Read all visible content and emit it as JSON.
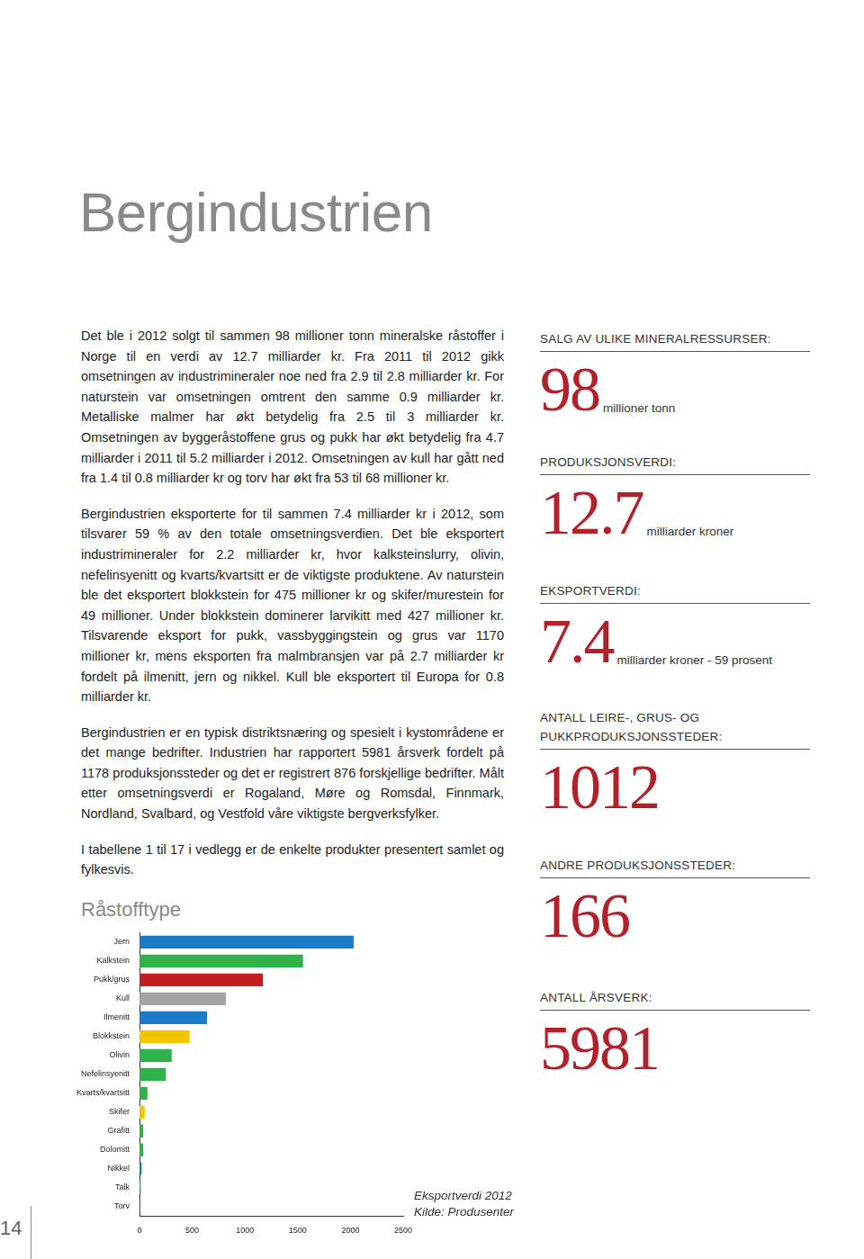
{
  "header": {
    "title": "Bergindustrien"
  },
  "paragraphs": [
    "Det ble i 2012 solgt til sammen 98 millioner tonn mineralske råstoffer i Norge til en verdi av 12.7 milliarder kr. Fra 2011 til 2012 gikk omsetningen av industrimineraler noe ned fra 2.9 til 2.8 milliarder kr. For naturstein var omsetningen omtrent den samme 0.9 milliarder kr. Metalliske malmer har økt betydelig fra 2.5 til 3 milliarder kr. Omsetningen av byggeråstoffene grus og pukk har økt betydelig fra 4.7 milliarder i 2011 til 5.2 milliarder i 2012. Omsetningen av kull har gått ned fra 1.4 til 0.8 milliarder kr og torv har økt fra 53 til 68 millioner kr.",
    "Bergindustrien eksporterte for til sammen 7.4 milliarder kr i 2012, som tilsvarer 59 % av den totale omsetningsverdien. Det ble eksportert industrimineraler for 2.2 milliarder kr, hvor kalksteinslurry, olivin, nefelinsyenitt og kvarts/kvartsitt er de viktigste produktene. Av naturstein ble det eksportert blokkstein for 475 millioner kr og skifer/murestein for 49 millioner. Under blokkstein dominerer larvikitt med 427 millioner kr. Tilsvarende eksport for pukk, vassbyggingstein og grus var 1170 millioner kr, mens eksporten fra malmbransjen var på 2.7 milliarder kr fordelt på ilmenitt, jern og nikkel. Kull ble eksportert til Europa for 0.8 milliarder kr.",
    "Bergindustrien er en typisk distriktsnæring og spesielt i kystområdene er det mange bedrifter. Industrien har rapportert 5981 årsverk fordelt på 1178 produksjonssteder og det er registrert 876 forskjellige bedrifter. Målt etter omsetningsverdi er Rogaland, Møre og Romsdal, Finnmark, Nordland, Svalbard, og Vestfold våre viktigste bergverksfylker.",
    "I tabellene 1 til 17 i vedlegg er de enkelte produkter presentert samlet og fylkesvis."
  ],
  "sidebar": [
    {
      "heading": "SALG AV ULIKE MINERALRESSURSER:",
      "number": "98",
      "unit": "millioner tonn"
    },
    {
      "heading": "PRODUKSJONSVERDI:",
      "number": "12.7",
      "unit": "milliarder kroner"
    },
    {
      "heading": "EKSPORTVERDI:",
      "number": "7.4",
      "unit": "milliarder kroner - 59 prosent"
    },
    {
      "heading": "ANTALL LEIRE-, GRUS- OG PUKKPRODUKSJONSSTEDER:",
      "number": "1012"
    },
    {
      "heading": "ANDRE PRODUKSJONSSTEDER:",
      "number": "166"
    },
    {
      "heading": "ANTALL ÅRSVERK:",
      "number": "5981"
    }
  ],
  "page_number": "14",
  "chart_data": {
    "type": "bar",
    "title": "Råstofftype",
    "orientation": "horizontal",
    "categories": [
      "Jern",
      "Kalkstein",
      "Pukk/grus",
      "Kull",
      "Ilmenitt",
      "Blokkstein",
      "Olivin",
      "Nefelinsyenitt",
      "Kvarts/kvartsitt",
      "Skifer",
      "Grafitt",
      "Dolomitt",
      "Nikkel",
      "Talk",
      "Torv"
    ],
    "values": [
      2030,
      1550,
      1170,
      820,
      640,
      475,
      305,
      250,
      75,
      49,
      35,
      35,
      20,
      12,
      2
    ],
    "colors": [
      "#1a7bc8",
      "#2db34a",
      "#c0201e",
      "#a3a3a3",
      "#1a7bc8",
      "#f5c400",
      "#2db34a",
      "#2db34a",
      "#2db34a",
      "#f5c400",
      "#2db34a",
      "#2db34a",
      "#1a7bc8",
      "#2db34a",
      "#2db34a"
    ],
    "xlim": [
      0,
      2500
    ],
    "xticks": [
      0,
      500,
      1000,
      1500,
      2000,
      2500
    ],
    "grid": false,
    "annotations": [
      "Eksportverdi 2012",
      "Kilde: Produsenter"
    ]
  }
}
